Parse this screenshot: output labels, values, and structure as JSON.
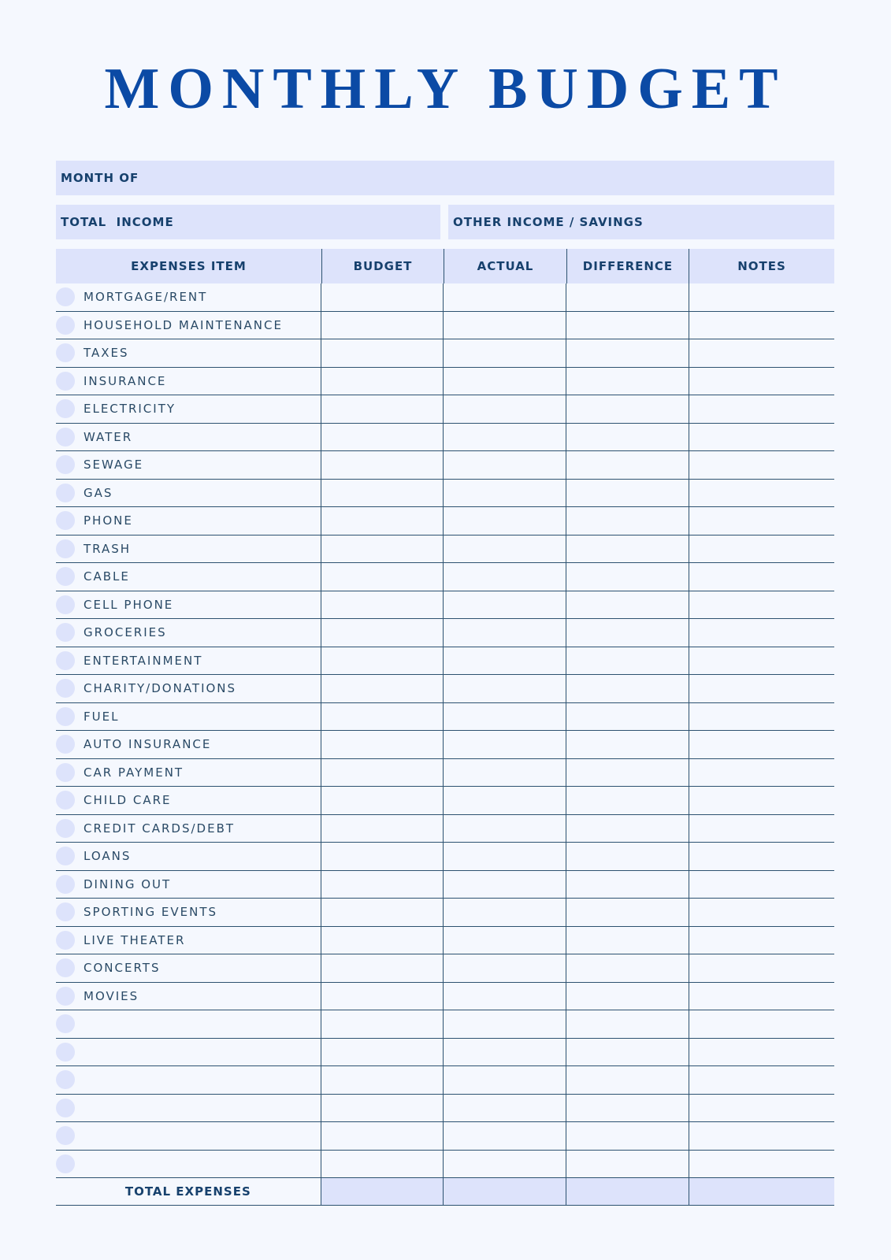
{
  "title": "MONTHLY BUDGET",
  "month_of_label": "MONTH OF",
  "total_income_label": "TOTAL  INCOME",
  "other_income_label": "OTHER INCOME / SAVINGS",
  "columns": [
    "EXPENSES ITEM",
    "BUDGET",
    "ACTUAL",
    "DIFFERENCE",
    "NOTES"
  ],
  "items": [
    "MORTGAGE/RENT",
    "HOUSEHOLD MAINTENANCE",
    "TAXES",
    "INSURANCE",
    "ELECTRICITY",
    "WATER",
    "SEWAGE",
    "GAS",
    "PHONE",
    "TRASH",
    "CABLE",
    "CELL PHONE",
    "GROCERIES",
    "ENTERTAINMENT",
    "CHARITY/DONATIONS",
    "FUEL",
    "AUTO INSURANCE",
    "CAR PAYMENT",
    "CHILD CARE",
    "CREDIT CARDS/DEBT",
    "LOANS",
    "DINING OUT",
    "SPORTING EVENTS",
    "LIVE THEATER",
    "CONCERTS",
    "MOVIES",
    "",
    "",
    "",
    "",
    "",
    ""
  ],
  "total_label": "TOTAL EXPENSES",
  "colors": {
    "title": "#0b4aa5",
    "fill": "#dde3fb",
    "line": "#2d5270",
    "background": "#f5f8fe"
  }
}
